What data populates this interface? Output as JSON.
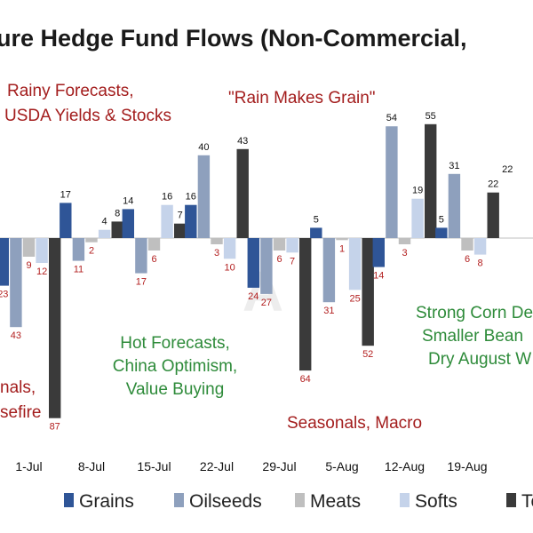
{
  "title": "ure Hedge Fund Flows (Non-Commercial,",
  "watermark": "A",
  "colors": {
    "Grains": "#2f5597",
    "Oilseeds": "#8ea0bd",
    "Meats": "#bfbfbf",
    "Softs": "#c5d3ea",
    "Total": "#3a3a3a",
    "annotation_red": "#a31d1d",
    "annotation_green": "#2e8b3a",
    "negative_label": "#b32020"
  },
  "annotations": [
    {
      "id": "rainy",
      "lines": [
        "Rainy Forecasts,",
        "USDA Yields & Stocks"
      ],
      "color": "red"
    },
    {
      "id": "rain-grain",
      "lines": [
        "\"Rain Makes Grain\""
      ],
      "color": "red"
    },
    {
      "id": "hot",
      "lines": [
        "Hot Forecasts,",
        "China Optimism,",
        "Value Buying"
      ],
      "color": "green"
    },
    {
      "id": "seasonals-left",
      "lines": [
        "nals,",
        "sefire"
      ],
      "color": "red"
    },
    {
      "id": "seasonals-macro",
      "lines": [
        "Seasonals, Macro"
      ],
      "color": "red"
    },
    {
      "id": "strong-corn",
      "lines": [
        "Strong Corn De",
        "Smaller Bean",
        "Dry August W"
      ],
      "color": "green"
    }
  ],
  "chart_data": {
    "type": "bar",
    "title": "ure Hedge Fund Flows (Non-Commercial,",
    "categories": [
      "",
      "1-Jul",
      "8-Jul",
      "15-Jul",
      "22-Jul",
      "29-Jul",
      "5-Aug",
      "12-Aug",
      "19-Aug",
      ""
    ],
    "series": [
      {
        "name": "Grains",
        "values": [
          null,
          -23,
          17,
          14,
          16,
          -24,
          5,
          -14,
          5,
          null
        ]
      },
      {
        "name": "Oilseeds",
        "values": [
          null,
          -43,
          -11,
          -17,
          40,
          -27,
          -31,
          54,
          31,
          null
        ]
      },
      {
        "name": "Meats",
        "values": [
          null,
          -9,
          -2,
          -6,
          -3,
          -6,
          -1,
          -3,
          -6,
          null
        ]
      },
      {
        "name": "Softs",
        "values": [
          null,
          -12,
          4,
          16,
          -10,
          -7,
          -25,
          19,
          -8,
          null
        ]
      },
      {
        "name": "Total",
        "values": [
          null,
          -87,
          8,
          7,
          43,
          -64,
          -52,
          55,
          22,
          null
        ]
      }
    ],
    "value_labels": {
      "Grains": [
        null,
        "23",
        "17",
        "14",
        "16",
        "24",
        "5",
        "14",
        "5",
        "22"
      ],
      "Oilseeds": [
        null,
        "43",
        "11",
        "17",
        "40",
        "27",
        "31",
        "54",
        "31",
        ""
      ],
      "Meats": [
        null,
        "9",
        "2",
        "6",
        "3",
        "6",
        "1",
        "3",
        "6",
        ""
      ],
      "Softs": [
        null,
        "12",
        "4",
        "16",
        "10",
        "7",
        "25",
        "19",
        "8",
        ""
      ],
      "Total": [
        null,
        "87",
        "8",
        "7",
        "43",
        "64",
        "52",
        "55",
        "22",
        ""
      ]
    },
    "partial_left_label": "",
    "ylim": [
      -95,
      60
    ],
    "grid": false,
    "legend": [
      "Grains",
      "Oilseeds",
      "Meats",
      "Softs",
      "To"
    ],
    "legend_position": "bottom"
  }
}
